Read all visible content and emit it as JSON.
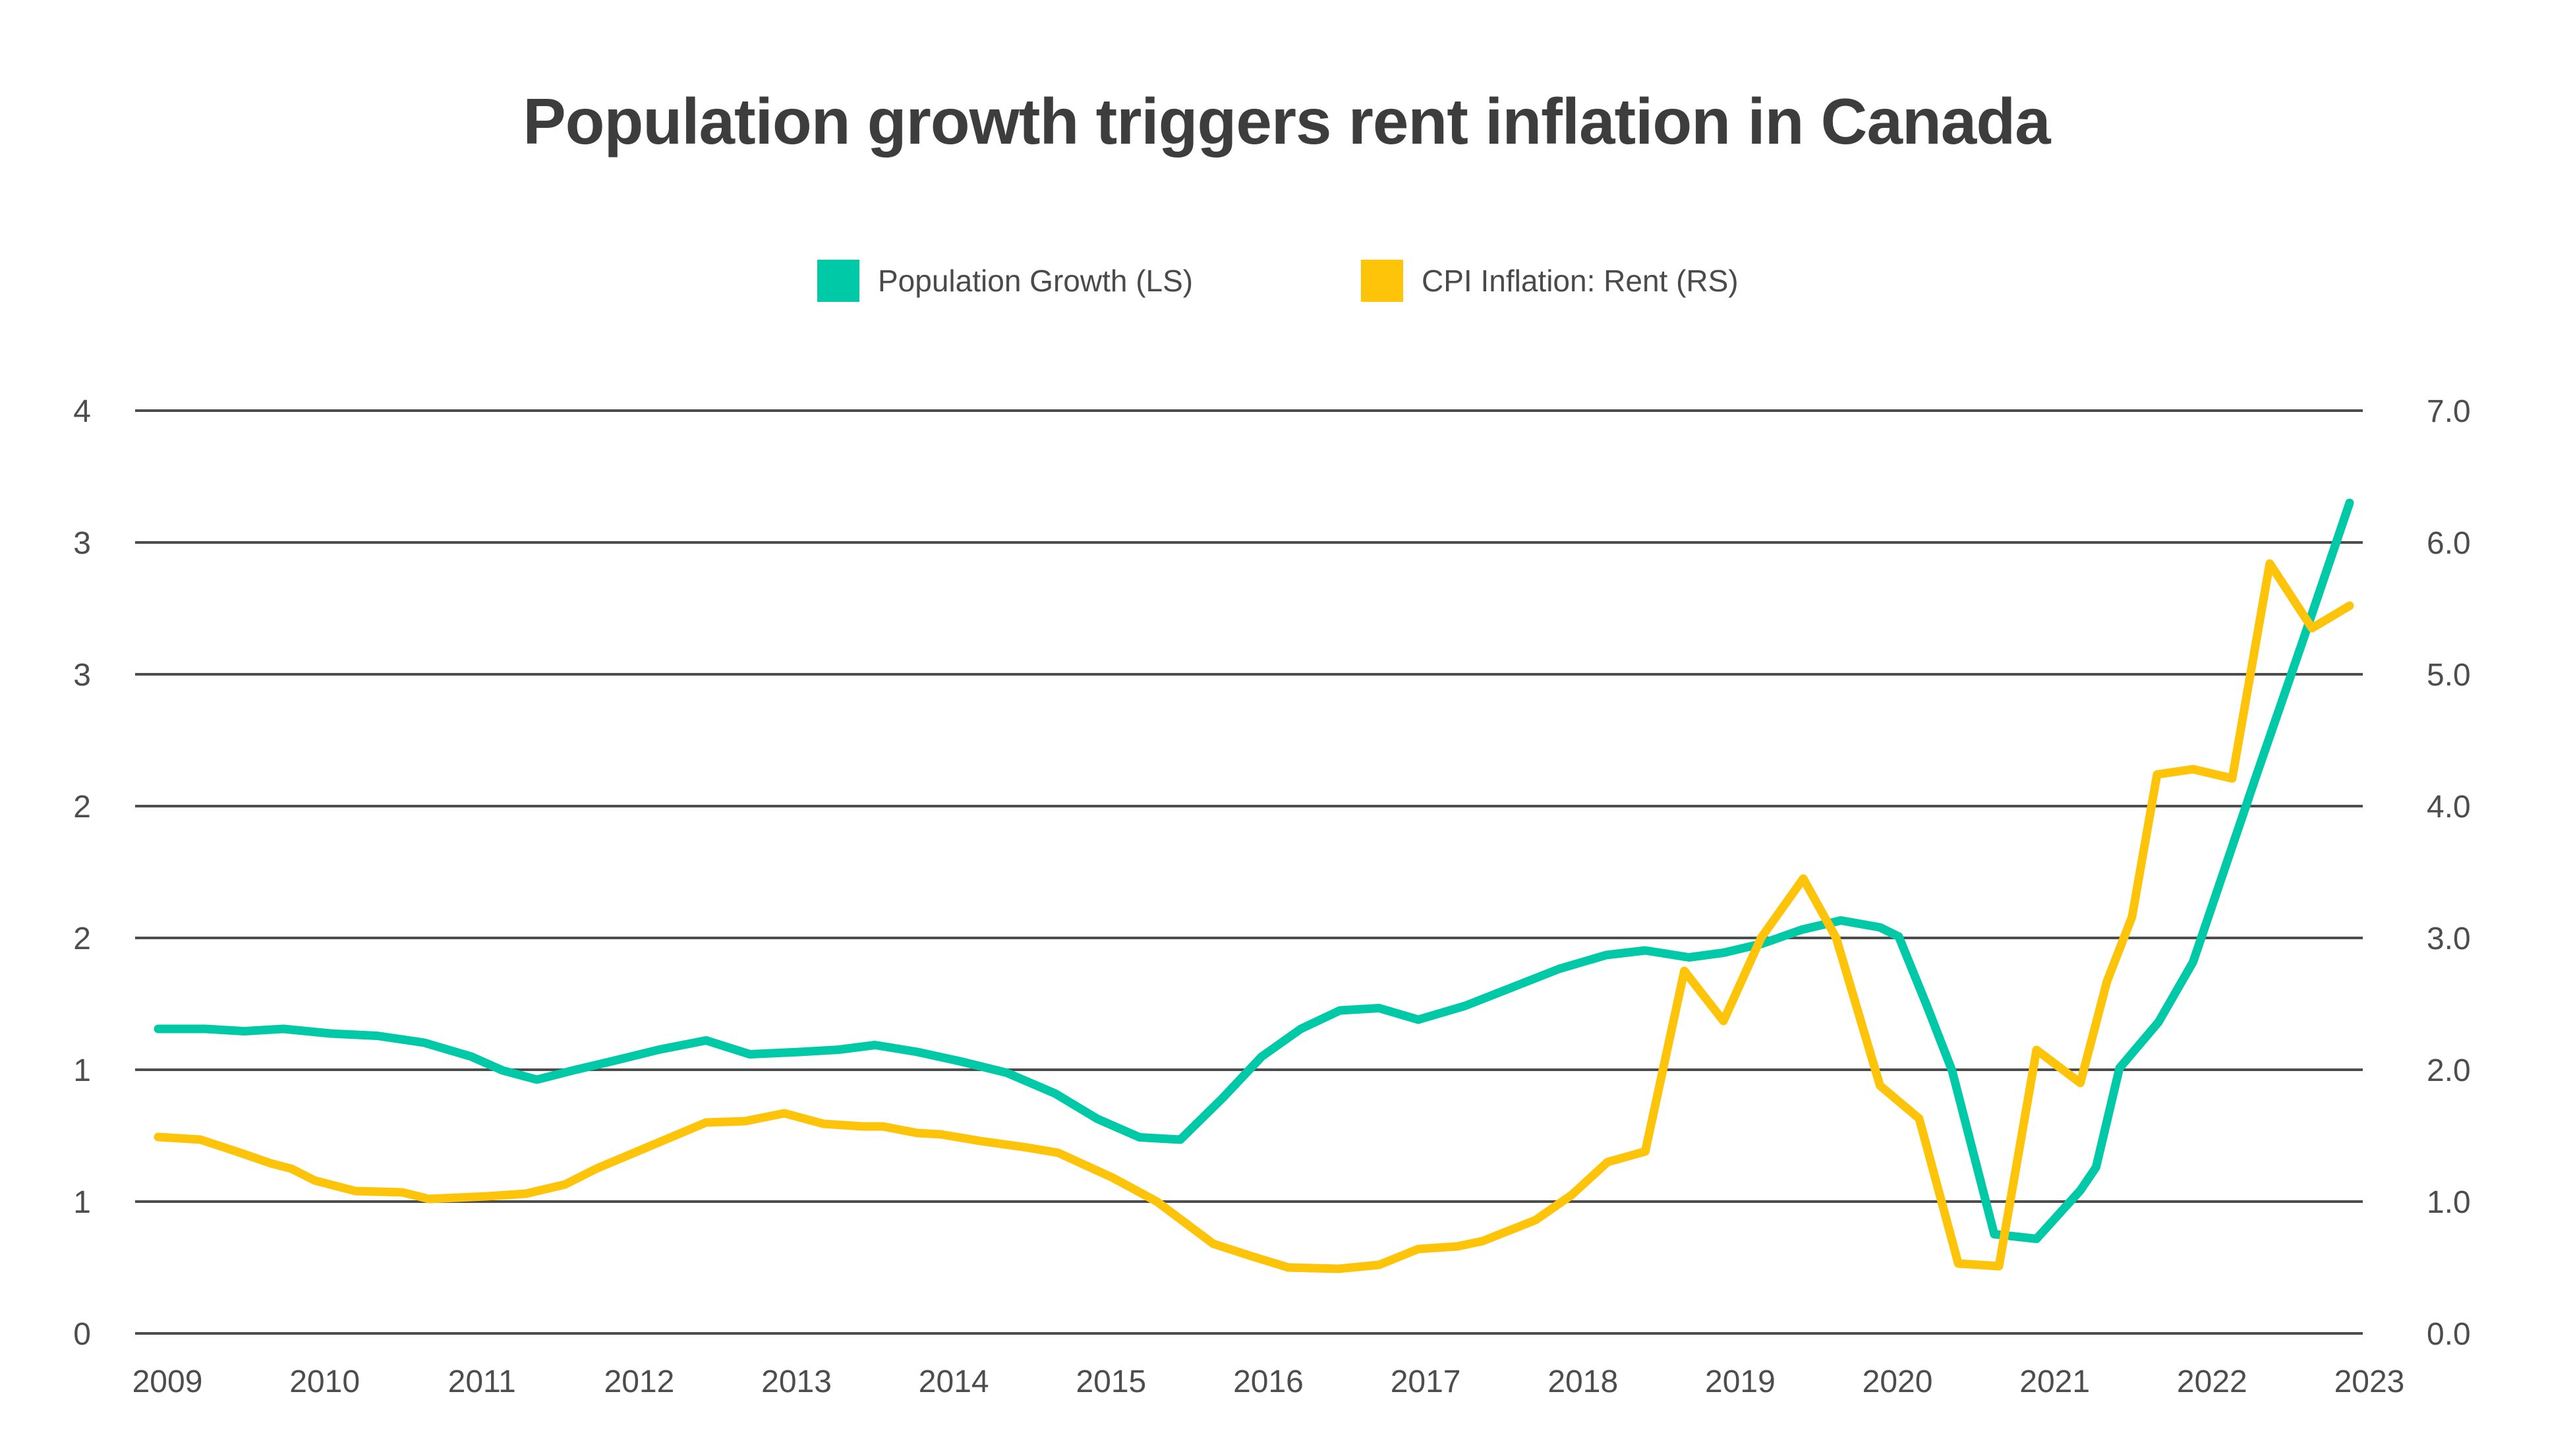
{
  "page": {
    "title": "Population growth triggers rent inflation in Canada"
  },
  "legend": [
    {
      "label": "Population Growth (LS)",
      "color": "#00C9A7"
    },
    {
      "label": "CPI Inflation: Rent (RS)",
      "color": "#FDC40A"
    }
  ],
  "chart_data": {
    "type": "line",
    "title": "Population growth triggers rent inflation in Canada",
    "grid": "horizontal",
    "legend_position": "top-center",
    "background": "#ffffff",
    "grid_color": "#4d4d4d",
    "text_color": "#4d4d4d",
    "x_axis": {
      "range": [
        2009,
        2023.25
      ],
      "tick_labels": [
        "2009",
        "2010",
        "2011",
        "2012",
        "2013",
        "2014",
        "2015",
        "2016",
        "2017",
        "2018",
        "2019",
        "2020",
        "2021",
        "2022",
        "2023"
      ]
    },
    "left_axis": {
      "range": [
        0,
        4
      ],
      "tick_labels_top_to_bottom": [
        "4",
        "3",
        "3",
        "2",
        "2",
        "1",
        "1",
        "0"
      ]
    },
    "right_axis": {
      "range": [
        0,
        7
      ],
      "tick_labels_top_to_bottom": [
        "7.0",
        "6.0",
        "5.0",
        "4.0",
        "3.0",
        "2.0",
        "1.0",
        "0.0"
      ]
    },
    "series": [
      {
        "name": "Population Growth (LS)",
        "axis": "left",
        "unit": "%",
        "color": "#00C9A7",
        "points": [
          [
            2009.0,
            1.32
          ],
          [
            2009.3,
            1.32
          ],
          [
            2009.55,
            1.31
          ],
          [
            2009.8,
            1.32
          ],
          [
            2010.1,
            1.3
          ],
          [
            2010.4,
            1.29
          ],
          [
            2010.7,
            1.26
          ],
          [
            2011.0,
            1.2
          ],
          [
            2011.2,
            1.14
          ],
          [
            2011.42,
            1.1
          ],
          [
            2011.65,
            1.14
          ],
          [
            2011.9,
            1.18
          ],
          [
            2012.2,
            1.23
          ],
          [
            2012.5,
            1.27
          ],
          [
            2012.78,
            1.21
          ],
          [
            2013.1,
            1.22
          ],
          [
            2013.35,
            1.23
          ],
          [
            2013.58,
            1.25
          ],
          [
            2013.85,
            1.22
          ],
          [
            2014.12,
            1.18
          ],
          [
            2014.42,
            1.13
          ],
          [
            2014.73,
            1.04
          ],
          [
            2015.0,
            0.93
          ],
          [
            2015.27,
            0.85
          ],
          [
            2015.53,
            0.84
          ],
          [
            2015.8,
            1.02
          ],
          [
            2016.05,
            1.2
          ],
          [
            2016.3,
            1.32
          ],
          [
            2016.55,
            1.4
          ],
          [
            2016.8,
            1.41
          ],
          [
            2017.05,
            1.36
          ],
          [
            2017.35,
            1.42
          ],
          [
            2017.65,
            1.5
          ],
          [
            2017.95,
            1.58
          ],
          [
            2018.25,
            1.64
          ],
          [
            2018.5,
            1.66
          ],
          [
            2018.78,
            1.63
          ],
          [
            2019.0,
            1.65
          ],
          [
            2019.25,
            1.69
          ],
          [
            2019.5,
            1.75
          ],
          [
            2019.75,
            1.79
          ],
          [
            2020.0,
            1.76
          ],
          [
            2020.12,
            1.72
          ],
          [
            2020.3,
            1.42
          ],
          [
            2020.46,
            1.14
          ],
          [
            2020.73,
            0.43
          ],
          [
            2021.0,
            0.41
          ],
          [
            2021.28,
            0.62
          ],
          [
            2021.38,
            0.72
          ],
          [
            2021.53,
            1.15
          ],
          [
            2021.78,
            1.35
          ],
          [
            2022.0,
            1.61
          ],
          [
            2022.4,
            2.41
          ],
          [
            2022.7,
            3.0
          ],
          [
            2023.0,
            3.6
          ]
        ]
      },
      {
        "name": "CPI Inflation: Rent (RS)",
        "axis": "right",
        "unit": "%",
        "color": "#FDC40A",
        "points": [
          [
            2009.0,
            1.49
          ],
          [
            2009.27,
            1.47
          ],
          [
            2009.5,
            1.38
          ],
          [
            2009.72,
            1.29
          ],
          [
            2009.85,
            1.25
          ],
          [
            2010.0,
            1.16
          ],
          [
            2010.26,
            1.08
          ],
          [
            2010.56,
            1.07
          ],
          [
            2010.73,
            1.02
          ],
          [
            2011.1,
            1.04
          ],
          [
            2011.35,
            1.06
          ],
          [
            2011.6,
            1.13
          ],
          [
            2011.8,
            1.25
          ],
          [
            2012.2,
            1.45
          ],
          [
            2012.5,
            1.6
          ],
          [
            2012.75,
            1.61
          ],
          [
            2013.0,
            1.67
          ],
          [
            2013.25,
            1.59
          ],
          [
            2013.5,
            1.57
          ],
          [
            2013.63,
            1.57
          ],
          [
            2013.85,
            1.52
          ],
          [
            2014.0,
            1.51
          ],
          [
            2014.25,
            1.46
          ],
          [
            2014.55,
            1.41
          ],
          [
            2014.75,
            1.37
          ],
          [
            2015.1,
            1.18
          ],
          [
            2015.38,
            1.0
          ],
          [
            2015.74,
            0.68
          ],
          [
            2016.0,
            0.58
          ],
          [
            2016.22,
            0.5
          ],
          [
            2016.54,
            0.49
          ],
          [
            2016.8,
            0.52
          ],
          [
            2017.05,
            0.64
          ],
          [
            2017.3,
            0.66
          ],
          [
            2017.46,
            0.7
          ],
          [
            2017.8,
            0.86
          ],
          [
            2018.03,
            1.05
          ],
          [
            2018.26,
            1.3
          ],
          [
            2018.5,
            1.38
          ],
          [
            2018.75,
            2.75
          ],
          [
            2019.0,
            2.37
          ],
          [
            2019.24,
            3.0
          ],
          [
            2019.51,
            3.45
          ],
          [
            2019.72,
            3.0
          ],
          [
            2020.0,
            1.88
          ],
          [
            2020.25,
            1.63
          ],
          [
            2020.5,
            0.53
          ],
          [
            2020.76,
            0.51
          ],
          [
            2021.0,
            2.15
          ],
          [
            2021.28,
            1.9
          ],
          [
            2021.45,
            2.67
          ],
          [
            2021.61,
            3.16
          ],
          [
            2021.77,
            4.24
          ],
          [
            2022.0,
            4.28
          ],
          [
            2022.25,
            4.21
          ],
          [
            2022.49,
            5.84
          ],
          [
            2022.76,
            5.35
          ],
          [
            2023.0,
            5.52
          ]
        ]
      }
    ]
  }
}
